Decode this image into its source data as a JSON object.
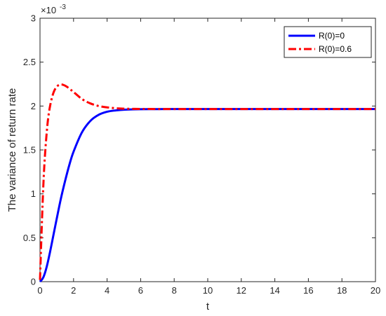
{
  "chart_data": {
    "type": "line",
    "xlabel": "t",
    "ylabel": "The variance of return rate",
    "xlim": [
      0,
      20
    ],
    "ylim": [
      0,
      3
    ],
    "xticks": [
      "0",
      "2",
      "4",
      "6",
      "8",
      "10",
      "12",
      "14",
      "16",
      "18",
      "20"
    ],
    "yticks": [
      "0",
      "0.5",
      "1",
      "1.5",
      "2",
      "2.5",
      "3"
    ],
    "y_scale_base": "×10",
    "y_scale_exponent": "-3",
    "grid": false,
    "legend_position": "top-right",
    "series": [
      {
        "name": "R(0)=0",
        "color": "#0000ff",
        "style": "solid",
        "x": [
          0,
          0.2,
          0.4,
          0.6,
          0.8,
          1.0,
          1.25,
          1.5,
          1.75,
          2.0,
          2.5,
          3.0,
          3.5,
          4.0,
          4.5,
          5.0,
          5.5,
          6.0,
          7.0,
          8.0,
          9.0,
          10.0,
          12.0,
          14.0,
          16.0,
          18.0,
          20.0
        ],
        "y": [
          0,
          0.05,
          0.17,
          0.34,
          0.53,
          0.72,
          0.95,
          1.15,
          1.33,
          1.48,
          1.7,
          1.83,
          1.9,
          1.935,
          1.95,
          1.958,
          1.962,
          1.964,
          1.965,
          1.966,
          1.966,
          1.966,
          1.966,
          1.966,
          1.966,
          1.966,
          1.966
        ]
      },
      {
        "name": "R(0)=0.6",
        "color": "#ff0000",
        "style": "dash-dot",
        "x": [
          0,
          0.1,
          0.2,
          0.3,
          0.45,
          0.6,
          0.8,
          1.0,
          1.2,
          1.4,
          1.6,
          1.8,
          2.0,
          2.5,
          3.0,
          3.5,
          4.0,
          4.5,
          5.0,
          6.0,
          7.0,
          8.0,
          10.0,
          12.0,
          14.0,
          16.0,
          18.0,
          20.0
        ],
        "y": [
          0.02,
          0.6,
          1.1,
          1.45,
          1.8,
          2.0,
          2.15,
          2.22,
          2.245,
          2.24,
          2.22,
          2.19,
          2.16,
          2.08,
          2.03,
          2.0,
          1.985,
          1.975,
          1.97,
          1.967,
          1.966,
          1.966,
          1.966,
          1.966,
          1.966,
          1.966,
          1.966,
          1.966
        ]
      }
    ]
  }
}
